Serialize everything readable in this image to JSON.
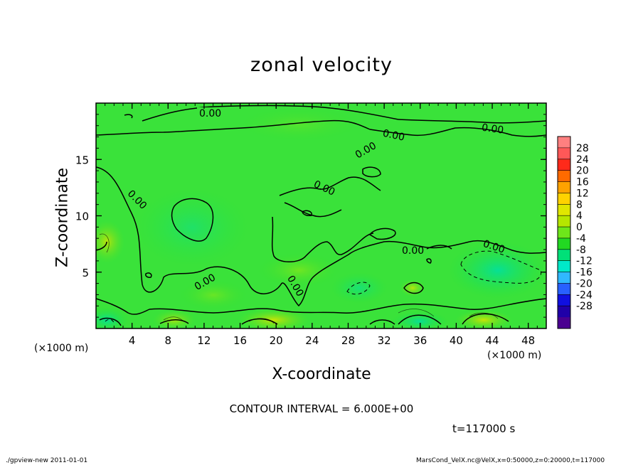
{
  "chart_data": {
    "type": "heatmap",
    "title": "zonal velocity",
    "xlabel": "X-coordinate",
    "ylabel": "Z-coordinate",
    "x_unit": "(×1000 m)",
    "z_unit": "(×1000 m)",
    "xlim": [
      0,
      50
    ],
    "ylim": [
      0,
      20
    ],
    "x_ticks": [
      4,
      8,
      12,
      16,
      20,
      24,
      28,
      32,
      36,
      40,
      44,
      48
    ],
    "y_ticks": [
      5,
      10,
      15
    ],
    "colorbar": {
      "labels": [
        28,
        24,
        20,
        16,
        12,
        8,
        4,
        0,
        -4,
        -8,
        -12,
        -16,
        -20,
        -24,
        -28
      ],
      "colors": [
        "#ff8080",
        "#ff5858",
        "#ff2a1a",
        "#ff6a00",
        "#ffa200",
        "#ffd200",
        "#e0e600",
        "#b6e600",
        "#6ee61a",
        "#22d822",
        "#00e078",
        "#00e8c8",
        "#30b8ff",
        "#2860ff",
        "#1010e0",
        "#2000a8",
        "#4a0090"
      ]
    },
    "contour_interval": "CONTOUR INTERVAL = 6.000E+00",
    "contour_labels": [
      "0.00",
      "0.00",
      "0.00",
      "0.00",
      "0.00",
      "0.00",
      "0.00",
      "0.00",
      "0.00",
      "0.00"
    ],
    "time_label": "t=117000 s",
    "footer_left": "./gpview-new   2011-01-01",
    "footer_right": "MarsCond_VelX.nc@VelX,x=0:50000,z=0:20000,t=117000"
  }
}
